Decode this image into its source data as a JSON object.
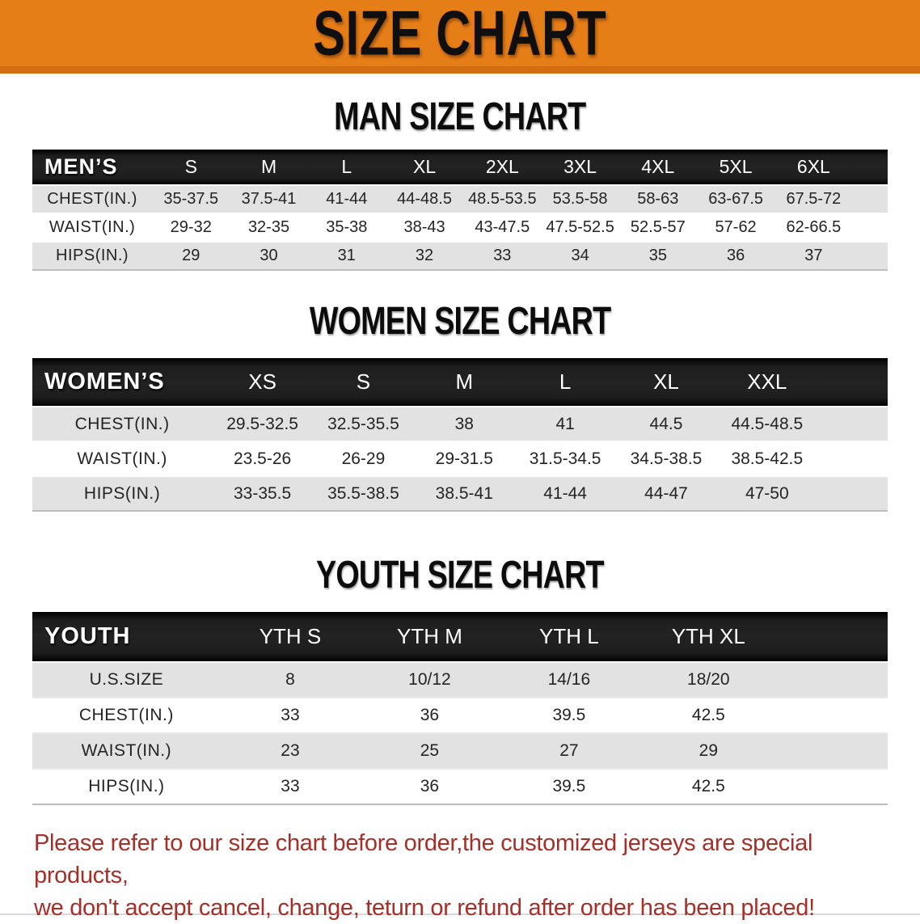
{
  "banner": {
    "title": "SIZE CHART",
    "bg_color": "#e67e17",
    "bg_edge_color": "#cf6d10",
    "text_color": "#0f0f0f"
  },
  "sections": [
    {
      "heading": "MAN SIZE CHART",
      "group_label": "MEN’S",
      "sizes": [
        "S",
        "M",
        "L",
        "XL",
        "2XL",
        "3XL",
        "4XL",
        "5XL",
        "6XL"
      ],
      "rows": [
        {
          "label": "CHEST(IN.)",
          "values": [
            "35-37.5",
            "37.5-41",
            "41-44",
            "44-48.5",
            "48.5-53.5",
            "53.5-58",
            "58-63",
            "63-67.5",
            "67.5-72"
          ]
        },
        {
          "label": "WAIST(IN.)",
          "values": [
            "29-32",
            "32-35",
            "35-38",
            "38-43",
            "43-47.5",
            "47.5-52.5",
            "52.5-57",
            "57-62",
            "62-66.5"
          ]
        },
        {
          "label": "HIPS(IN.)",
          "values": [
            "29",
            "30",
            "31",
            "32",
            "33",
            "34",
            "35",
            "36",
            "37"
          ]
        }
      ]
    },
    {
      "heading": "WOMEN SIZE CHART",
      "group_label": "WOMEN’S",
      "sizes": [
        "XS",
        "S",
        "M",
        "L",
        "XL",
        "XXL"
      ],
      "rows": [
        {
          "label": "CHEST(IN.)",
          "values": [
            "29.5-32.5",
            "32.5-35.5",
            "38",
            "41",
            "44.5",
            "44.5-48.5"
          ]
        },
        {
          "label": "WAIST(IN.)",
          "values": [
            "23.5-26",
            "26-29",
            "29-31.5",
            "31.5-34.5",
            "34.5-38.5",
            "38.5-42.5"
          ]
        },
        {
          "label": "HIPS(IN.)",
          "values": [
            "33-35.5",
            "35.5-38.5",
            "38.5-41",
            "41-44",
            "44-47",
            "47-50"
          ]
        }
      ]
    },
    {
      "heading": "YOUTH SIZE CHART",
      "group_label": "YOUTH",
      "sizes": [
        "YTH S",
        "YTH M",
        "YTH L",
        "YTH XL"
      ],
      "rows": [
        {
          "label": "U.S.SIZE",
          "values": [
            "8",
            "10/12",
            "14/16",
            "18/20"
          ]
        },
        {
          "label": "CHEST(IN.)",
          "values": [
            "33",
            "36",
            "39.5",
            "42.5"
          ]
        },
        {
          "label": "WAIST(IN.)",
          "values": [
            "23",
            "25",
            "27",
            "29"
          ]
        },
        {
          "label": "HIPS(IN.)",
          "values": [
            "33",
            "36",
            "39.5",
            "42.5"
          ]
        }
      ]
    }
  ],
  "footer": {
    "line1": "Please refer to our size chart before order,the customized jerseys are special products,",
    "line2": "we don't accept cancel, change, teturn or refund after order has been placed!",
    "text_color": "#a72f28"
  },
  "chart_data": [
    {
      "type": "table",
      "title": "MAN SIZE CHART",
      "columns": [
        "MEN’S",
        "S",
        "M",
        "L",
        "XL",
        "2XL",
        "3XL",
        "4XL",
        "5XL",
        "6XL"
      ],
      "rows": [
        [
          "CHEST(IN.)",
          "35-37.5",
          "37.5-41",
          "41-44",
          "44-48.5",
          "48.5-53.5",
          "53.5-58",
          "58-63",
          "63-67.5",
          "67.5-72"
        ],
        [
          "WAIST(IN.)",
          "29-32",
          "32-35",
          "35-38",
          "38-43",
          "43-47.5",
          "47.5-52.5",
          "52.5-57",
          "57-62",
          "62-66.5"
        ],
        [
          "HIPS(IN.)",
          "29",
          "30",
          "31",
          "32",
          "33",
          "34",
          "35",
          "36",
          "37"
        ]
      ]
    },
    {
      "type": "table",
      "title": "WOMEN SIZE CHART",
      "columns": [
        "WOMEN’S",
        "XS",
        "S",
        "M",
        "L",
        "XL",
        "XXL"
      ],
      "rows": [
        [
          "CHEST(IN.)",
          "29.5-32.5",
          "32.5-35.5",
          "38",
          "41",
          "44.5",
          "44.5-48.5"
        ],
        [
          "WAIST(IN.)",
          "23.5-26",
          "26-29",
          "29-31.5",
          "31.5-34.5",
          "34.5-38.5",
          "38.5-42.5"
        ],
        [
          "HIPS(IN.)",
          "33-35.5",
          "35.5-38.5",
          "38.5-41",
          "41-44",
          "44-47",
          "47-50"
        ]
      ]
    },
    {
      "type": "table",
      "title": "YOUTH SIZE CHART",
      "columns": [
        "YOUTH",
        "YTH S",
        "YTH M",
        "YTH L",
        "YTH XL"
      ],
      "rows": [
        [
          "U.S.SIZE",
          "8",
          "10/12",
          "14/16",
          "18/20"
        ],
        [
          "CHEST(IN.)",
          "33",
          "36",
          "39.5",
          "42.5"
        ],
        [
          "WAIST(IN.)",
          "23",
          "25",
          "27",
          "29"
        ],
        [
          "HIPS(IN.)",
          "33",
          "36",
          "39.5",
          "42.5"
        ]
      ]
    }
  ]
}
